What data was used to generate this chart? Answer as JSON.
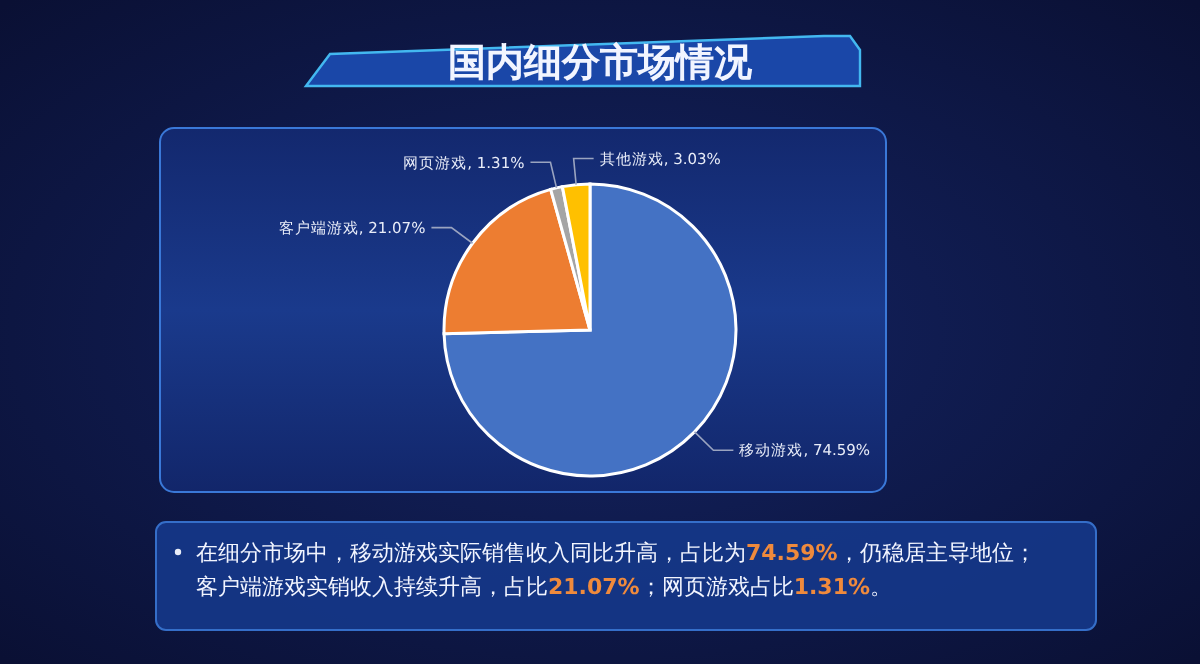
{
  "chart_data": {
    "type": "pie",
    "title": "国内细分市场情况",
    "categories": [
      "移动游戏",
      "客户端游戏",
      "网页游戏",
      "其他游戏"
    ],
    "values": [
      74.59,
      21.07,
      1.31,
      3.03
    ],
    "value_labels": [
      ", 74.59%",
      ", 21.07%",
      ", 1.31%",
      ", 3.03%"
    ],
    "colors": [
      "#4472c4",
      "#ed7d31",
      "#a5a5a5",
      "#ffc000"
    ],
    "annotations": [
      "在细分市场中，移动游戏实际销售收入同比升高，占比为74.59%，仍稳居主导地位；客户端游戏实销收入持续升高，占比21.07%；网页游戏占比1.31%。"
    ]
  }
}
